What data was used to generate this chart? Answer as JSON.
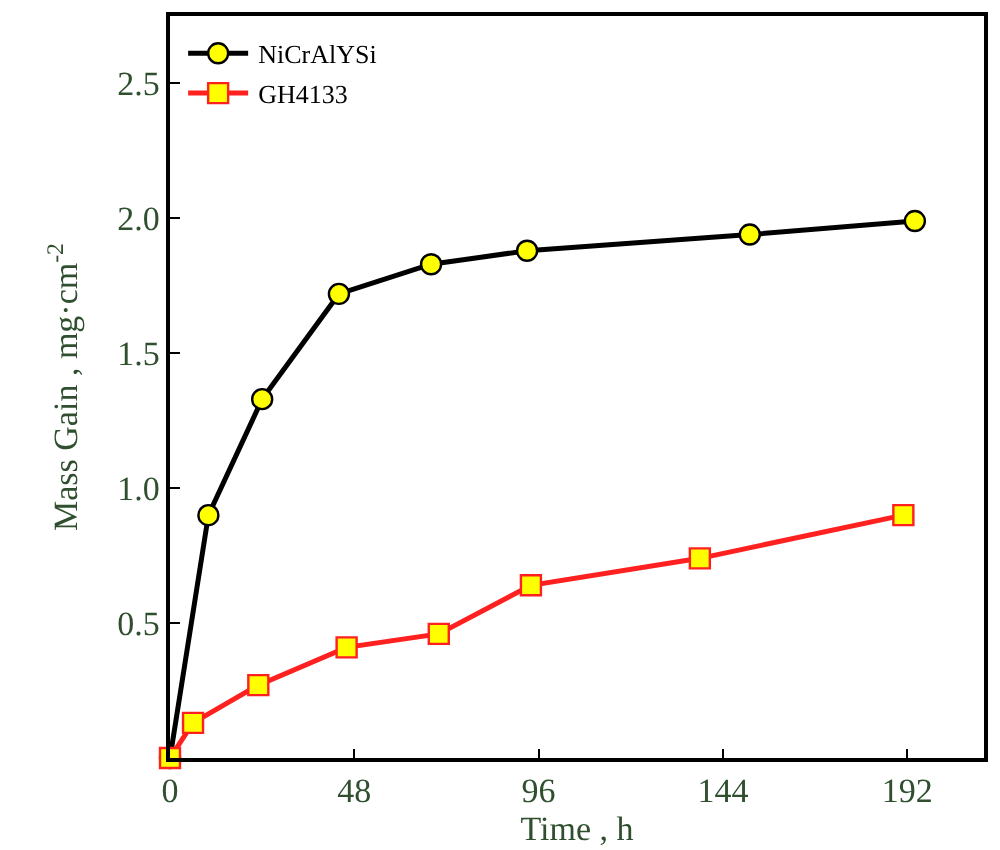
{
  "chart_data": {
    "type": "line",
    "xlabel": "Time , h",
    "ylabel": "Mass Gain , mg·cm$^{-2}$",
    "xlim": [
      0,
      212
    ],
    "ylim": [
      0,
      2.75
    ],
    "xticks": [
      0,
      48,
      96,
      144,
      192
    ],
    "yticks": [
      0.5,
      {
        "value": 1,
        "label": "1.0"
      },
      1.5,
      {
        "value": 2,
        "label": "2.0"
      },
      2.5
    ],
    "legend": "top left",
    "line_style": "solid",
    "series": [
      {
        "name": "NiCrAlYSi",
        "color": "#000000",
        "marker": "circle",
        "x": [
          0,
          10,
          24,
          44,
          68,
          93,
          151,
          194
        ],
        "values": [
          0,
          0.9,
          1.33,
          1.72,
          1.83,
          1.88,
          1.94,
          1.99
        ]
      },
      {
        "name": "GH4133",
        "color": "#ff2020",
        "marker": "square",
        "x": [
          0,
          6,
          23,
          46,
          70,
          94,
          138,
          191
        ],
        "values": [
          0,
          0.13,
          0.27,
          0.41,
          0.46,
          0.64,
          0.74,
          0.9
        ]
      }
    ]
  }
}
